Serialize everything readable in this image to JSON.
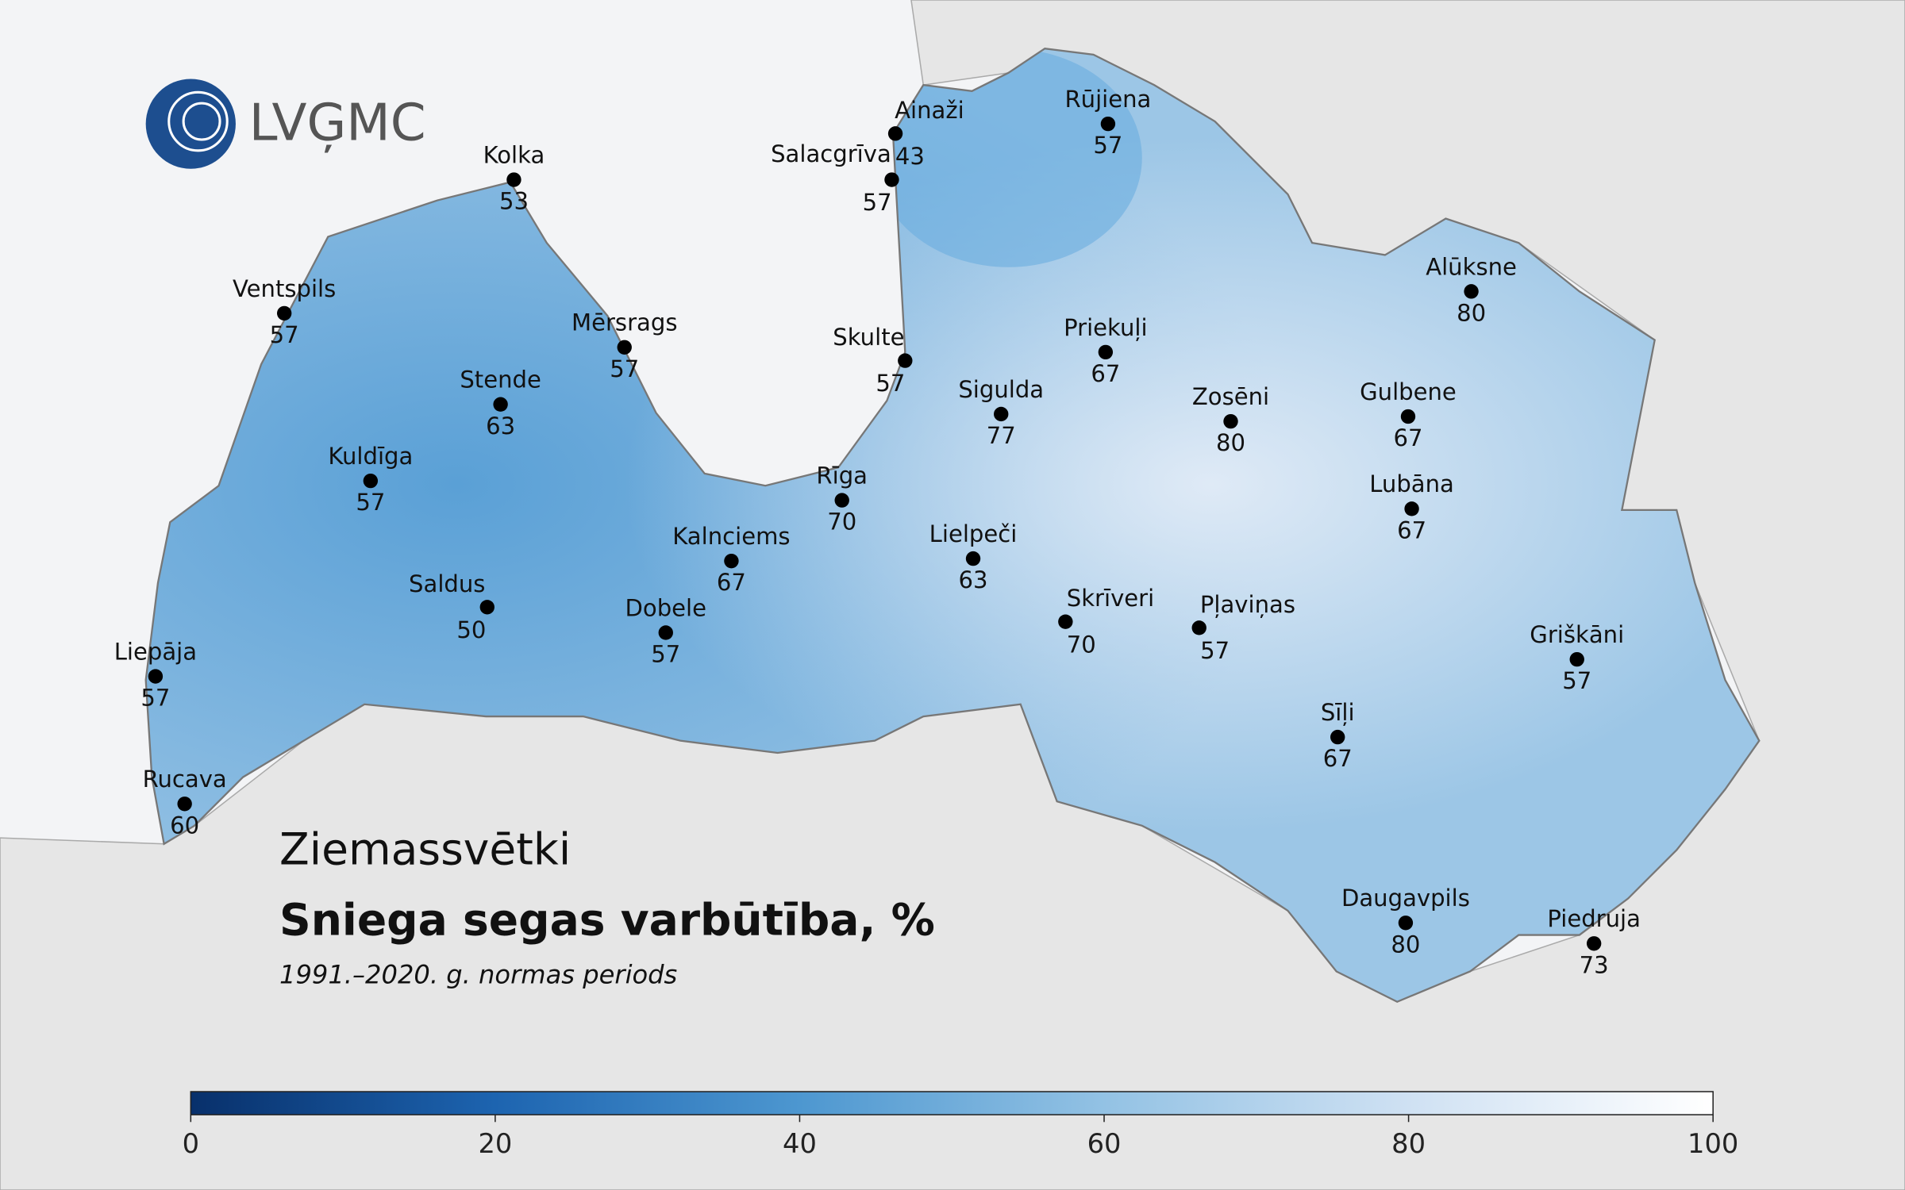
{
  "logo": "LVĢMC",
  "title": "Ziemassvētki",
  "subtitle": "Sniega segas varbūtība, %",
  "period": "1991.–2020. g. normas periods",
  "stations": [
    {
      "name": "Kolka",
      "value": 53
    },
    {
      "name": "Ventspils",
      "value": 57
    },
    {
      "name": "Mērsrags",
      "value": 57
    },
    {
      "name": "Stende",
      "value": 63
    },
    {
      "name": "Kuldīga",
      "value": 57
    },
    {
      "name": "Saldus",
      "value": 50
    },
    {
      "name": "Liepāja",
      "value": 57
    },
    {
      "name": "Rucava",
      "value": 60
    },
    {
      "name": "Dobele",
      "value": 57
    },
    {
      "name": "Kalnciems",
      "value": 67
    },
    {
      "name": "Rīga",
      "value": 70
    },
    {
      "name": "Lielpeči",
      "value": 63
    },
    {
      "name": "Sigulda",
      "value": 77
    },
    {
      "name": "Skulte",
      "value": 57
    },
    {
      "name": "Ainaži",
      "value": 43
    },
    {
      "name": "Salacgrīva",
      "value": 57
    },
    {
      "name": "Rūjiena",
      "value": 57
    },
    {
      "name": "Priekuļi",
      "value": 67
    },
    {
      "name": "Zosēni",
      "value": 80
    },
    {
      "name": "Alūksne",
      "value": 80
    },
    {
      "name": "Gulbene",
      "value": 67
    },
    {
      "name": "Lubāna",
      "value": 67
    },
    {
      "name": "Skrīveri",
      "value": 70
    },
    {
      "name": "Pļaviņas",
      "value": 57
    },
    {
      "name": "Griškāni",
      "value": 57
    },
    {
      "name": "Sīļi",
      "value": 67
    },
    {
      "name": "Daugavpils",
      "value": 80
    },
    {
      "name": "Piedruja",
      "value": 73
    }
  ],
  "colorbar": {
    "lim": [
      0,
      100
    ],
    "ticks": [
      0,
      20,
      40,
      60,
      80,
      100
    ]
  }
}
